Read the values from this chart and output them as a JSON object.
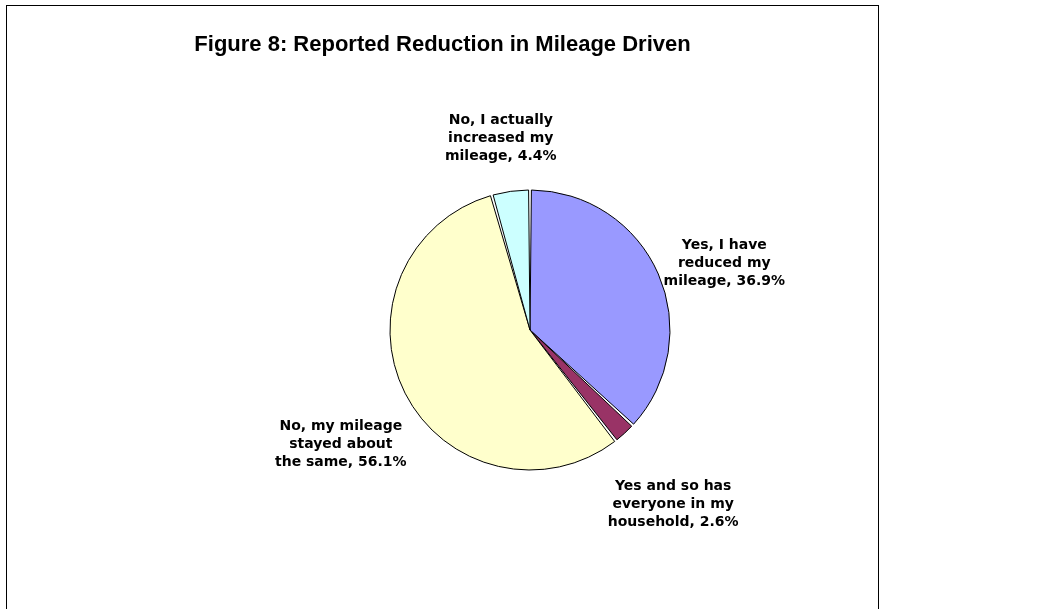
{
  "chart_data": {
    "type": "pie",
    "title": "Figure 8: Reported Reduction in Mileage Driven",
    "categories": [
      "Yes, I have reduced my mileage",
      "Yes and so has everyone in my household",
      "No, my mileage stayed about the same",
      "No, I actually increased my mileage"
    ],
    "values": [
      36.9,
      2.6,
      56.1,
      4.4
    ],
    "value_labels": [
      "36.9%",
      "2.6%",
      "56.1%",
      "4.4%"
    ],
    "colors": [
      "#9999ff",
      "#993366",
      "#ffffcc",
      "#ccffff"
    ]
  }
}
